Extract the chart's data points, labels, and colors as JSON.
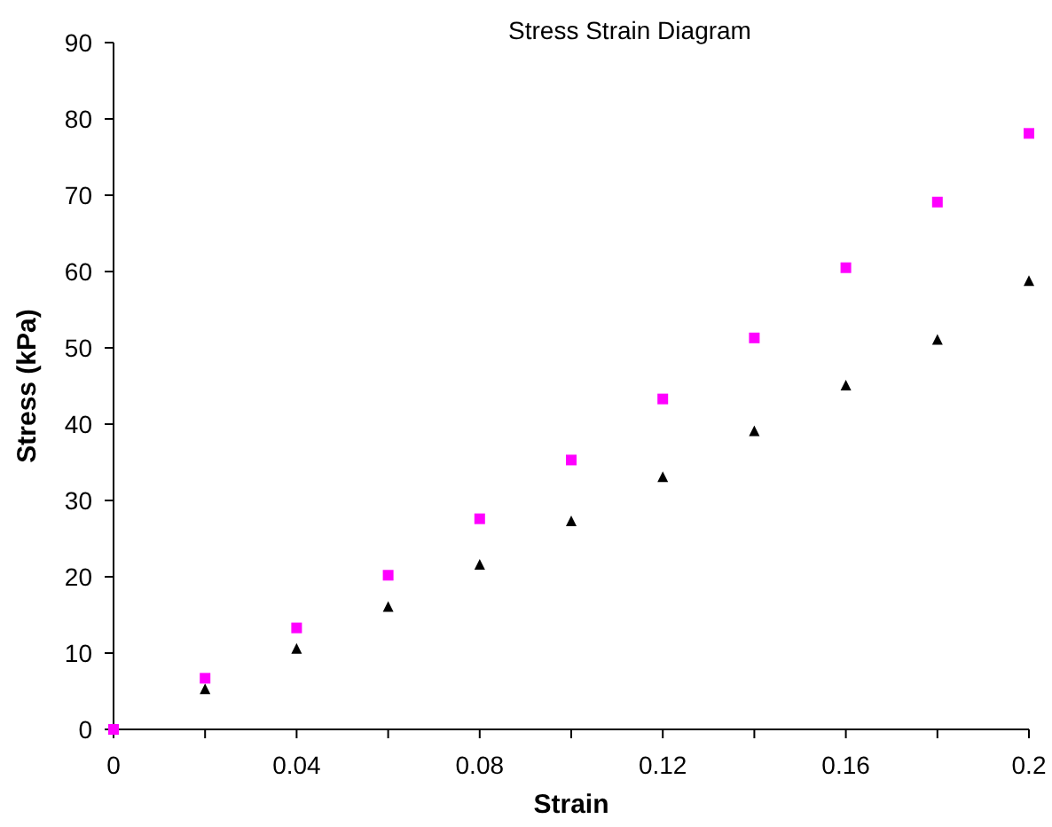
{
  "chart_data": {
    "type": "scatter",
    "title": "Stress Strain Diagram",
    "xlabel": "Strain",
    "ylabel": "Stress (kPa)",
    "x": [
      0,
      0.02,
      0.04,
      0.06,
      0.08,
      0.1,
      0.12,
      0.14,
      0.16,
      0.18,
      0.2
    ],
    "series": [
      {
        "color": "#000000",
        "marker": "triangle",
        "values": [
          null,
          5.2,
          10.5,
          16,
          21.5,
          27.2,
          33,
          39,
          45,
          51,
          58.7
        ]
      },
      {
        "color": "#ff00ff",
        "marker": "square",
        "values": [
          0,
          6.7,
          13.3,
          20.2,
          27.6,
          35.3,
          43.3,
          51.3,
          60.5,
          69.1,
          78.1
        ]
      }
    ],
    "xlim": [
      0,
      0.2
    ],
    "xticks": [
      0,
      {
        "value": 0.02,
        "label": null
      },
      0.04,
      {
        "value": 0.06,
        "label": null
      },
      0.08,
      {
        "value": 0.1,
        "label": null
      },
      0.12,
      {
        "value": 0.14,
        "label": null
      },
      0.16,
      {
        "value": 0.18,
        "label": null
      },
      0.2
    ],
    "ylim": [
      0,
      90
    ],
    "yticks": [
      0,
      10,
      20,
      30,
      40,
      50,
      60,
      70,
      80,
      90
    ],
    "grid": false
  }
}
